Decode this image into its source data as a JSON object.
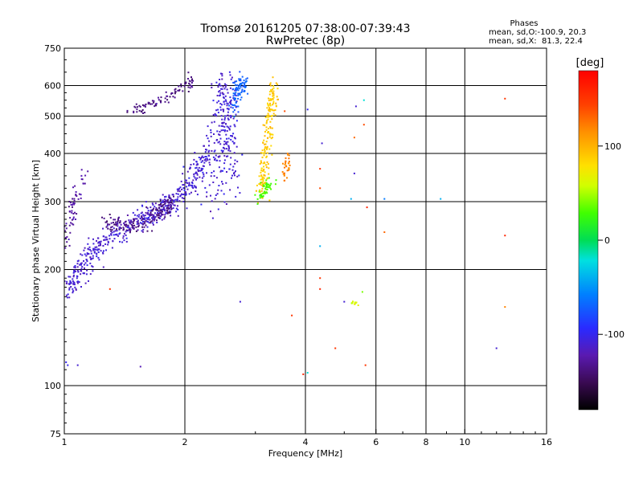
{
  "header": {
    "title": "Tromsø 20161205 07:38:00-07:39:43",
    "subtitle": "RwPretec (8p)"
  },
  "stats": {
    "heading": "Phases",
    "line_o": "mean, sd,O:-100.9, 20.3",
    "line_x": "mean, sd,X:  81.3, 22.4"
  },
  "colorbar": {
    "unit": "[deg]",
    "tick_labels": [
      "100",
      "0",
      "-100"
    ],
    "tick_values": [
      100,
      0,
      -100
    ],
    "range": [
      -180,
      180
    ],
    "colormap": "rainbow (black-purple-blue-cyan-green-yellow-orange-red)"
  },
  "chart_data": {
    "type": "scatter",
    "title": "Tromsø 20161205 07:38:00-07:39:43",
    "subtitle": "RwPretec (8p)",
    "xlabel": "Frequency [MHz]",
    "ylabel": "Stationary phase Virtual Height [km]",
    "xscale": "log",
    "yscale": "log",
    "xlim": [
      1,
      16
    ],
    "ylim": [
      75,
      750
    ],
    "x_ticks": [
      1,
      2,
      4,
      6,
      8,
      10,
      16
    ],
    "x_tick_labels": [
      "1",
      "2",
      "4",
      "6",
      "8",
      "10",
      "16"
    ],
    "y_ticks": [
      75,
      100,
      200,
      300,
      400,
      500,
      600,
      750
    ],
    "y_tick_labels": [
      "75",
      "100",
      "200",
      "300",
      "400",
      "500",
      "600",
      "750"
    ],
    "x_gridlines": [
      2,
      4,
      6,
      8,
      10
    ],
    "y_gridlines": [
      100,
      200,
      300,
      400,
      500,
      600
    ],
    "grid": true,
    "color_value": "phase [deg]",
    "traces": [
      {
        "name": "",
        "phase": -110,
        "points": [
          [
            1.0,
            175
          ],
          [
            1.05,
            185
          ],
          [
            1.1,
            200
          ],
          [
            1.15,
            215
          ],
          [
            1.2,
            228
          ],
          [
            1.3,
            243
          ],
          [
            1.4,
            255
          ],
          [
            1.5,
            265
          ],
          [
            1.6,
            272
          ],
          [
            1.7,
            282
          ],
          [
            1.8,
            292
          ],
          [
            1.9,
            306
          ],
          [
            2.0,
            322
          ],
          [
            2.1,
            345
          ],
          [
            2.2,
            378
          ],
          [
            2.25,
            400
          ]
        ],
        "spread_x": 0.05,
        "spread_y": 0.07,
        "count": 520
      },
      {
        "name": "",
        "phase": -125,
        "points": [
          [
            1.0,
            230
          ],
          [
            1.03,
            260
          ],
          [
            1.06,
            300
          ],
          [
            1.1,
            330
          ],
          [
            1.12,
            355
          ]
        ],
        "spread_x": 0.03,
        "spread_y": 0.05,
        "count": 60
      },
      {
        "name": "",
        "phase": -135,
        "points": [
          [
            1.25,
            265
          ],
          [
            1.35,
            262
          ],
          [
            1.45,
            258
          ],
          [
            1.55,
            262
          ],
          [
            1.65,
            272
          ],
          [
            1.75,
            285
          ],
          [
            1.85,
            300
          ]
        ],
        "spread_x": 0.04,
        "spread_y": 0.05,
        "count": 160
      },
      {
        "name": "",
        "phase": -135,
        "points": [
          [
            1.45,
            510
          ],
          [
            1.6,
            530
          ],
          [
            1.75,
            550
          ],
          [
            1.9,
            575
          ],
          [
            2.0,
            600
          ],
          [
            2.1,
            625
          ]
        ],
        "spread_x": 0.04,
        "spread_y": 0.03,
        "count": 90
      },
      {
        "name": "",
        "phase": -110,
        "points": [
          [
            2.35,
            300
          ],
          [
            2.4,
            400
          ],
          [
            2.45,
            500
          ],
          [
            2.5,
            620
          ],
          [
            2.55,
            520
          ],
          [
            2.6,
            420
          ],
          [
            2.65,
            330
          ]
        ],
        "spread_x": 0.06,
        "spread_y": 0.12,
        "count": 260
      },
      {
        "name": "",
        "phase": -70,
        "points": [
          [
            2.65,
            520
          ],
          [
            2.7,
            570
          ],
          [
            2.75,
            620
          ],
          [
            2.8,
            600
          ]
        ],
        "spread_x": 0.04,
        "spread_y": 0.06,
        "count": 80
      },
      {
        "name": "",
        "phase": 90,
        "points": [
          [
            3.1,
            310
          ],
          [
            3.15,
            360
          ],
          [
            3.2,
            420
          ],
          [
            3.25,
            480
          ],
          [
            3.3,
            540
          ],
          [
            3.35,
            600
          ]
        ],
        "spread_x": 0.03,
        "spread_y": 0.08,
        "count": 190
      },
      {
        "name": "",
        "phase": 30,
        "points": [
          [
            3.0,
            300
          ],
          [
            3.1,
            315
          ],
          [
            3.2,
            330
          ],
          [
            3.3,
            340
          ]
        ],
        "spread_x": 0.03,
        "spread_y": 0.03,
        "count": 45
      },
      {
        "name": "",
        "phase": 120,
        "points": [
          [
            3.55,
            350
          ],
          [
            3.6,
            370
          ],
          [
            3.65,
            390
          ]
        ],
        "spread_x": 0.02,
        "spread_y": 0.05,
        "count": 30
      },
      {
        "name": "",
        "phase": 60,
        "points": [
          [
            5.2,
            165
          ],
          [
            5.35,
            163
          ],
          [
            5.5,
            162
          ]
        ],
        "spread_x": 0.02,
        "spread_y": 0.01,
        "count": 12
      }
    ],
    "isolated_points": [
      {
        "x": 1.01,
        "y": 115,
        "phase": -100
      },
      {
        "x": 1.02,
        "y": 113,
        "phase": -100
      },
      {
        "x": 1.08,
        "y": 113,
        "phase": -110
      },
      {
        "x": 1.3,
        "y": 178,
        "phase": 150
      },
      {
        "x": 1.55,
        "y": 112,
        "phase": -120
      },
      {
        "x": 2.75,
        "y": 165,
        "phase": -110
      },
      {
        "x": 3.55,
        "y": 515,
        "phase": 140
      },
      {
        "x": 3.7,
        "y": 152,
        "phase": 150
      },
      {
        "x": 3.95,
        "y": 107,
        "phase": 160
      },
      {
        "x": 4.05,
        "y": 108,
        "phase": -20
      },
      {
        "x": 4.05,
        "y": 520,
        "phase": -100
      },
      {
        "x": 4.35,
        "y": 365,
        "phase": 150
      },
      {
        "x": 4.35,
        "y": 325,
        "phase": 140
      },
      {
        "x": 4.35,
        "y": 230,
        "phase": -40
      },
      {
        "x": 4.35,
        "y": 190,
        "phase": 150
      },
      {
        "x": 4.35,
        "y": 178,
        "phase": 160
      },
      {
        "x": 4.4,
        "y": 425,
        "phase": -110
      },
      {
        "x": 4.75,
        "y": 125,
        "phase": 150
      },
      {
        "x": 5.0,
        "y": 165,
        "phase": -110
      },
      {
        "x": 5.2,
        "y": 305,
        "phase": -40
      },
      {
        "x": 5.3,
        "y": 355,
        "phase": -110
      },
      {
        "x": 5.3,
        "y": 440,
        "phase": 130
      },
      {
        "x": 5.35,
        "y": 530,
        "phase": -110
      },
      {
        "x": 5.6,
        "y": 550,
        "phase": -20
      },
      {
        "x": 5.6,
        "y": 475,
        "phase": 140
      },
      {
        "x": 5.55,
        "y": 175,
        "phase": 40
      },
      {
        "x": 5.65,
        "y": 113,
        "phase": 150
      },
      {
        "x": 5.7,
        "y": 290,
        "phase": 160
      },
      {
        "x": 6.3,
        "y": 305,
        "phase": -60
      },
      {
        "x": 6.3,
        "y": 250,
        "phase": 130
      },
      {
        "x": 8.7,
        "y": 305,
        "phase": -40
      },
      {
        "x": 12.0,
        "y": 125,
        "phase": -110
      },
      {
        "x": 12.6,
        "y": 555,
        "phase": 150
      },
      {
        "x": 12.6,
        "y": 245,
        "phase": 160
      },
      {
        "x": 12.6,
        "y": 160,
        "phase": 120
      }
    ]
  }
}
